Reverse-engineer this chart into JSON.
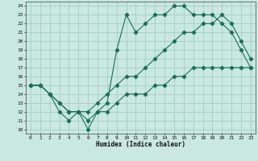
{
  "title": "",
  "xlabel": "Humidex (Indice chaleur)",
  "xlim": [
    -0.5,
    23.5
  ],
  "ylim": [
    9.5,
    24.5
  ],
  "yticks": [
    10,
    11,
    12,
    13,
    14,
    15,
    16,
    17,
    18,
    19,
    20,
    21,
    22,
    23,
    24
  ],
  "xticks": [
    0,
    1,
    2,
    3,
    4,
    5,
    6,
    7,
    8,
    9,
    10,
    11,
    12,
    13,
    14,
    15,
    16,
    17,
    18,
    19,
    20,
    21,
    22,
    23
  ],
  "bg_color": "#c8e8e0",
  "line_color": "#1a6e5a",
  "grid_color": "#a0c8c0",
  "line1_y": [
    15,
    15,
    14,
    12,
    11,
    12,
    10,
    12,
    13,
    19,
    23,
    21,
    22,
    23,
    23,
    24,
    24,
    23,
    23,
    23,
    22,
    21,
    19,
    17
  ],
  "line2_y": [
    15,
    15,
    14,
    13,
    12,
    12,
    12,
    13,
    14,
    15,
    16,
    16,
    17,
    18,
    19,
    20,
    21,
    21,
    22,
    22,
    23,
    22,
    20,
    18
  ],
  "line3_y": [
    15,
    15,
    14,
    13,
    12,
    12,
    11,
    12,
    12,
    13,
    14,
    14,
    14,
    15,
    15,
    16,
    16,
    17,
    17,
    17,
    17,
    17,
    17,
    17
  ]
}
